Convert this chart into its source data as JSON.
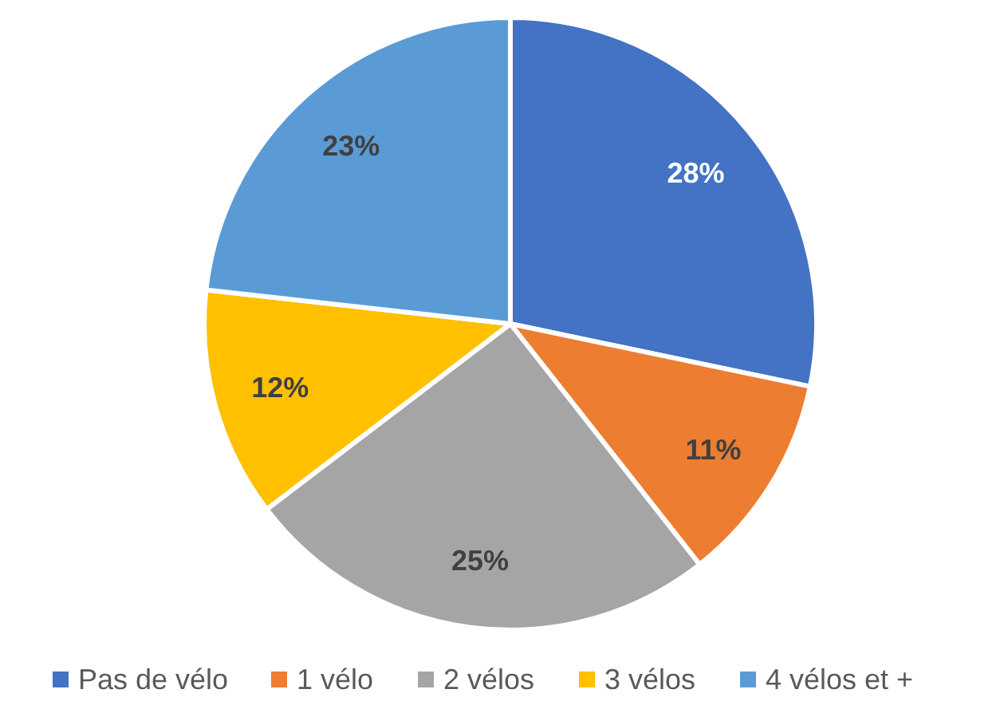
{
  "chart_data": {
    "type": "pie",
    "categories": [
      "Pas de vélo",
      "1 vélo",
      "2 vélos",
      "3 vélos",
      "4 vélos et +"
    ],
    "values": [
      28,
      11,
      25,
      12,
      23
    ],
    "colors": [
      "#4472c4",
      "#ed7d31",
      "#a5a5a5",
      "#ffc000",
      "#5b9bd5"
    ],
    "value_labels": [
      "28%",
      "11%",
      "25%",
      "12%",
      "23%"
    ],
    "legend": "bottom"
  }
}
